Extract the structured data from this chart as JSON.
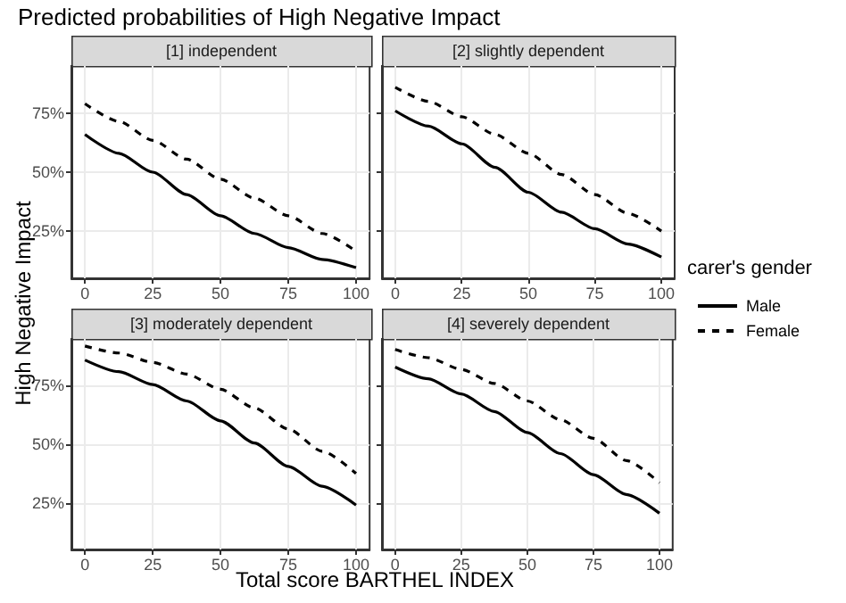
{
  "chart_data": [
    {
      "type": "line",
      "title": "Predicted probabilities of High Negative Impact",
      "subtitle": "[1] independent",
      "ylabel": "High Negative Impact",
      "xlim": [
        -5,
        105
      ],
      "xticks": [
        0,
        25,
        50,
        75,
        100
      ],
      "ylim": [
        5,
        95
      ],
      "yticks": [
        {
          "value": 25,
          "label": "25%"
        },
        {
          "value": 50,
          "label": "50%"
        },
        {
          "value": 75,
          "label": "75%"
        }
      ],
      "x": [
        0,
        12.5,
        25,
        37.5,
        50,
        62.5,
        75,
        87.5,
        100
      ],
      "grid": true,
      "marker": "none",
      "series": [
        {
          "color": "#000000",
          "line_style": "solid",
          "values": [
            66,
            58,
            50,
            40.5,
            31.5,
            24,
            18,
            13,
            9.5
          ]
        },
        {
          "color": "#000000",
          "line_style": "dashed",
          "values": [
            79,
            71.5,
            63.5,
            55.5,
            47,
            39,
            31.5,
            24,
            16.5
          ]
        }
      ]
    },
    {
      "type": "line",
      "subtitle": "[2] slightly dependent",
      "legend": "right",
      "legend_title": "carer's gender",
      "tick_labels": "x",
      "xlim": [
        -5,
        105
      ],
      "xticks": [
        0,
        25,
        50,
        75,
        100
      ],
      "ylim": [
        5,
        95
      ],
      "yticks": [
        25,
        50,
        75
      ],
      "x": [
        0,
        12.5,
        25,
        37.5,
        50,
        62.5,
        75,
        87.5,
        100
      ],
      "grid": true,
      "marker": "none",
      "series": [
        {
          "name": "Male",
          "color": "#000000",
          "line_style": "solid",
          "values": [
            76,
            69.5,
            62,
            52,
            41.5,
            33,
            26,
            19.5,
            14
          ]
        },
        {
          "name": "Female",
          "color": "#000000",
          "line_style": "dashed",
          "values": [
            86,
            80,
            73.5,
            66,
            58,
            49,
            40.5,
            32.5,
            25
          ]
        }
      ]
    },
    {
      "type": "line",
      "subtitle": "[3] moderately dependent",
      "xlabel": "Total score BARTHEL INDEX",
      "xlim": [
        -5,
        105
      ],
      "xticks": [
        0,
        25,
        50,
        75,
        100
      ],
      "ylim": [
        5,
        95
      ],
      "yticks": [
        {
          "value": 25,
          "label": "25%"
        },
        {
          "value": 50,
          "label": "50%"
        },
        {
          "value": 75,
          "label": "75%"
        }
      ],
      "x": [
        0,
        12.5,
        25,
        37.5,
        50,
        62.5,
        75,
        87.5,
        100
      ],
      "grid": true,
      "marker": "none",
      "series": [
        {
          "color": "#000000",
          "line_style": "solid",
          "values": [
            86,
            81,
            75.5,
            68.5,
            60,
            50.5,
            40.5,
            32,
            24
          ]
        },
        {
          "color": "#000000",
          "line_style": "dashed",
          "values": [
            92,
            89,
            85,
            80,
            73.5,
            65.5,
            56.5,
            47,
            37.5
          ]
        }
      ]
    },
    {
      "type": "line",
      "subtitle": "[4] severely dependent",
      "tick_labels": "x",
      "xlim": [
        -5,
        105
      ],
      "xticks": [
        0,
        25,
        50,
        75,
        100
      ],
      "ylim": [
        5,
        95
      ],
      "yticks": [
        25,
        50,
        75
      ],
      "x": [
        0,
        12.5,
        25,
        37.5,
        50,
        62.5,
        75,
        87.5,
        100
      ],
      "grid": true,
      "marker": "none",
      "series": [
        {
          "color": "#000000",
          "line_style": "solid",
          "values": [
            83,
            78,
            71.5,
            64,
            55,
            46,
            37,
            28.5,
            20.5
          ]
        },
        {
          "color": "#000000",
          "line_style": "dashed",
          "values": [
            90.5,
            87,
            82,
            76,
            68.5,
            60.5,
            52.5,
            43,
            33.5
          ]
        }
      ]
    }
  ]
}
